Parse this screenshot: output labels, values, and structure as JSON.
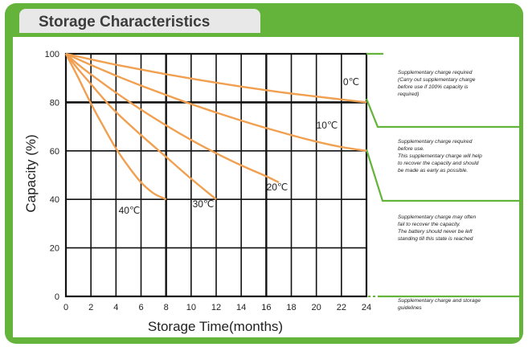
{
  "chart_data": {
    "type": "line",
    "title": "Storage Characteristics",
    "xlabel": "Storage Time(months)",
    "ylabel": "Capacity  (%)",
    "xlim": [
      0,
      24
    ],
    "ylim": [
      0,
      100
    ],
    "x_ticks": [
      0,
      2,
      4,
      6,
      8,
      10,
      12,
      14,
      16,
      18,
      20,
      22,
      24
    ],
    "y_ticks": [
      0,
      20,
      40,
      60,
      80,
      100
    ],
    "grid": true,
    "series": [
      {
        "name": "0℃",
        "x": [
          0,
          2,
          4,
          6,
          8,
          10,
          12,
          14,
          16,
          18,
          20,
          22,
          24
        ],
        "y": [
          100,
          97.7,
          95.5,
          93.5,
          91.6,
          89.8,
          88.1,
          86.5,
          85,
          83.6,
          82.4,
          81.2,
          80
        ]
      },
      {
        "name": "10℃",
        "x": [
          0,
          2,
          4,
          6,
          8,
          10,
          12,
          14,
          16,
          18,
          20,
          22,
          24
        ],
        "y": [
          100,
          95.4,
          91,
          86.9,
          83,
          79.3,
          75.8,
          72.5,
          69.4,
          66.5,
          63.8,
          61.6,
          60
        ]
      },
      {
        "name": "20℃",
        "x": [
          0,
          1,
          2,
          4,
          6,
          8,
          10,
          12,
          14,
          16,
          17
        ],
        "y": [
          100,
          95.5,
          91.5,
          84,
          77,
          70.5,
          64.5,
          59,
          54,
          49.5,
          47
        ]
      },
      {
        "name": "30℃",
        "x": [
          0,
          1,
          2,
          3,
          4,
          6,
          8,
          10,
          12
        ],
        "y": [
          100,
          93.5,
          87.5,
          81.5,
          76,
          66.5,
          57.5,
          48.5,
          40
        ]
      },
      {
        "name": "40℃",
        "x": [
          0,
          0.5,
          1,
          2,
          3,
          4,
          5,
          6,
          7,
          8
        ],
        "y": [
          100,
          95,
          90,
          79.5,
          70,
          61,
          53.5,
          47,
          42.5,
          40
        ]
      }
    ],
    "curve_color": "#f0a050",
    "zones": [
      {
        "text": "Supplementary charge required\n(Carry out supplementary charge\nbefore use if 100% capacity is\nrequired)"
      },
      {
        "text": "Supplementary charge required\nbefore use.\nThis supplementary charge will help\nto recover the capacity and should\nbe made  as early as possible."
      },
      {
        "text": "Supplementary charge may often\nfail to recover the capacity.\nThe battery should never be left\nstanding till this state is reached"
      },
      {
        "text": "Supplementary charge and storage\nguidelines"
      }
    ]
  }
}
